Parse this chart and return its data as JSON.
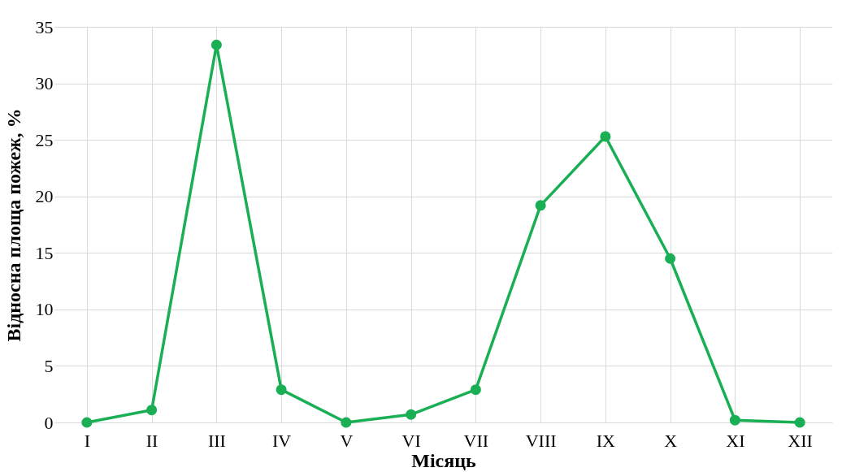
{
  "chart_data": {
    "type": "line",
    "xlabel": "Місяць",
    "ylabel": "Відносна площа пожеж, %",
    "categories": [
      "I",
      "II",
      "III",
      "IV",
      "V",
      "VI",
      "VII",
      "VIII",
      "IX",
      "X",
      "XI",
      "XII"
    ],
    "series": [
      {
        "color": "#1aaf54",
        "values": [
          0,
          1.1,
          33.4,
          2.9,
          0,
          0.7,
          2.9,
          19.2,
          25.3,
          14.5,
          0.2,
          0
        ]
      }
    ],
    "ylim": [
      0,
      35
    ],
    "yticks": [
      0,
      5,
      10,
      15,
      20,
      25,
      30,
      35
    ],
    "grid": true,
    "marker": "circle",
    "line_style": "solid"
  }
}
